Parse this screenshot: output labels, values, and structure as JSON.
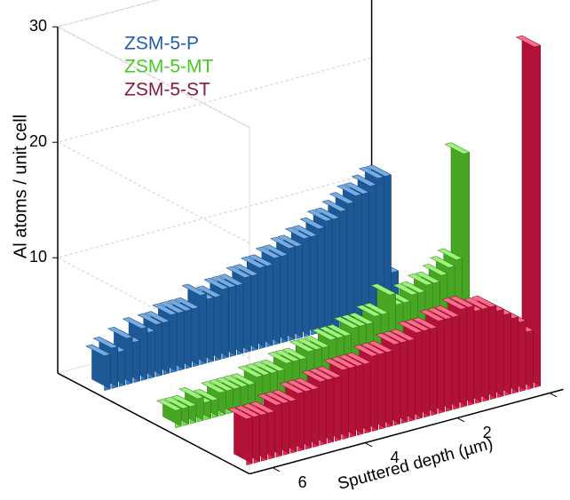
{
  "chart_data": {
    "type": "bar3d",
    "y_label": "Al atoms / unit cell",
    "x_label": "Sputtered depth (µm)",
    "x": [
      0,
      0.16,
      0.32,
      0.48,
      0.64,
      0.8,
      0.96,
      1.12,
      1.28,
      1.44,
      1.6,
      1.76,
      1.92,
      2.08,
      2.24,
      2.4,
      2.56,
      2.72,
      2.88,
      3.04,
      3.2,
      3.36,
      3.52,
      3.68,
      3.84,
      4,
      4.16,
      4.32,
      4.48,
      4.64,
      4.8,
      4.96,
      5.12,
      5.28,
      5.44,
      5.6,
      5.76,
      5.92,
      6.08,
      6.24
    ],
    "series": [
      {
        "name": "ZSM-5-P",
        "color": "#2a7fd8",
        "legend_color": "#1f5fb0",
        "values": [
          3.5,
          12,
          12,
          11.5,
          11,
          11,
          10.5,
          10,
          9.5,
          9.5,
          9,
          8.5,
          8.5,
          8,
          8,
          7.5,
          7.5,
          7,
          7,
          6.5,
          6.5,
          6,
          6,
          6,
          5.5,
          5.5,
          6,
          5,
          5,
          5,
          5,
          4.5,
          4.5,
          4,
          4.5,
          3.5,
          4,
          3,
          3.5,
          3
        ]
      },
      {
        "name": "ZSM-5-MT",
        "color": "#66ee33",
        "legend_color": "#44cc22",
        "values": [
          17,
          8,
          7.5,
          7,
          6.5,
          6.5,
          6,
          6,
          5.5,
          5.5,
          6.5,
          5,
          5,
          4.5,
          4.5,
          4.5,
          4,
          4,
          4,
          3.5,
          3.5,
          3.5,
          3,
          3,
          3,
          2.5,
          2.5,
          2.5,
          2.5,
          2,
          2,
          2,
          2,
          2,
          1.5,
          1.5,
          2,
          1.5,
          1.5,
          1.5
        ]
      },
      {
        "name": "ZSM-5-ST",
        "color": "#ff1a4f",
        "legend_color": "#8b1a3a",
        "values": [
          29.5,
          5,
          6,
          6.5,
          7,
          7.5,
          8,
          8,
          8,
          8.5,
          8.5,
          8,
          8,
          8,
          7.5,
          7.5,
          7.5,
          7,
          7,
          7,
          6.5,
          6.5,
          6.5,
          6,
          6,
          6,
          6,
          5.5,
          5.5,
          5.5,
          5,
          5,
          5,
          4.5,
          4.5,
          4.5,
          4,
          4,
          4,
          4
        ]
      }
    ],
    "xlim": [
      -0.3,
      6.5
    ],
    "xticks": [
      0,
      2,
      4,
      6
    ],
    "ylim": [
      0,
      30
    ],
    "yticks": [
      10,
      20,
      30
    ],
    "grid": true
  }
}
